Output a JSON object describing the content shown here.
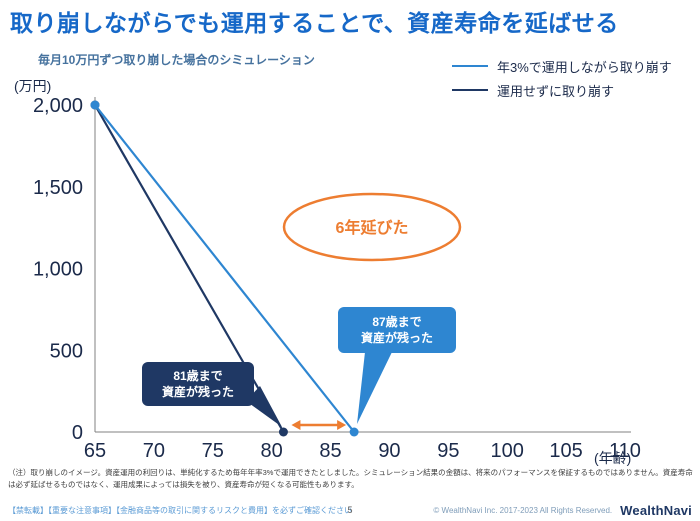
{
  "title": "取り崩しながらでも運用することで、資産寿命を延ばせる",
  "chart_data": {
    "type": "line",
    "title": "毎月10万円ずつ取り崩した場合のシミュレーション",
    "xlabel": "(年齢)",
    "ylabel": "(万円)",
    "xlim": [
      65,
      110
    ],
    "ylim": [
      0,
      2000
    ],
    "x_ticks": [
      65,
      70,
      75,
      80,
      85,
      90,
      95,
      100,
      105,
      110
    ],
    "y_ticks": [
      0,
      500,
      1000,
      1500,
      2000
    ],
    "y_tick_labels": [
      "0",
      "500",
      "1,000",
      "1,500",
      "2,000"
    ],
    "grid": false,
    "legend_position": "top-right",
    "legend": [
      {
        "label": "年3%で運用しながら取り崩す",
        "color": "#2e86d1"
      },
      {
        "label": "運用せずに取り崩す",
        "color": "#1f3864"
      }
    ],
    "series": [
      {
        "name": "運用せずに取り崩す",
        "color": "#1f3864",
        "points": [
          [
            65,
            2000
          ],
          [
            81,
            0
          ]
        ]
      },
      {
        "name": "年3%で運用しながら取り崩す",
        "color": "#2e86d1",
        "points": [
          [
            65,
            2000
          ],
          [
            87,
            0
          ]
        ]
      }
    ],
    "annotations": {
      "accent_color": "#ed7d31",
      "ellipse_label": "6年延びた",
      "gap_arrow": {
        "from_age": 81,
        "to_age": 87
      },
      "callout_navy": {
        "line1": "81歳まで",
        "line2": "資産が残った",
        "age": 81
      },
      "callout_blue": {
        "line1": "87歳まで",
        "line2": "資産が残った",
        "age": 87
      }
    }
  },
  "footnote": "（注）取り崩しのイメージ。資産運用の利回りは、単純化するため毎年年率3%で運用できたとしました。シミュレーション結果の金額は、将来のパフォーマンスを保証するものではありません。資産寿命は必ず延ばせるものではなく、運用成果によっては損失を被り、資産寿命が短くなる可能性もあります。",
  "footer": {
    "left": "【禁転載】【重要な注意事項】【金融商品等の取引に関するリスクと費用】を必ずご確認ください",
    "page": "5",
    "copyright": "© WealthNavi Inc. 2017-2023 All Rights Reserved.",
    "logo": "WealthNavi"
  }
}
